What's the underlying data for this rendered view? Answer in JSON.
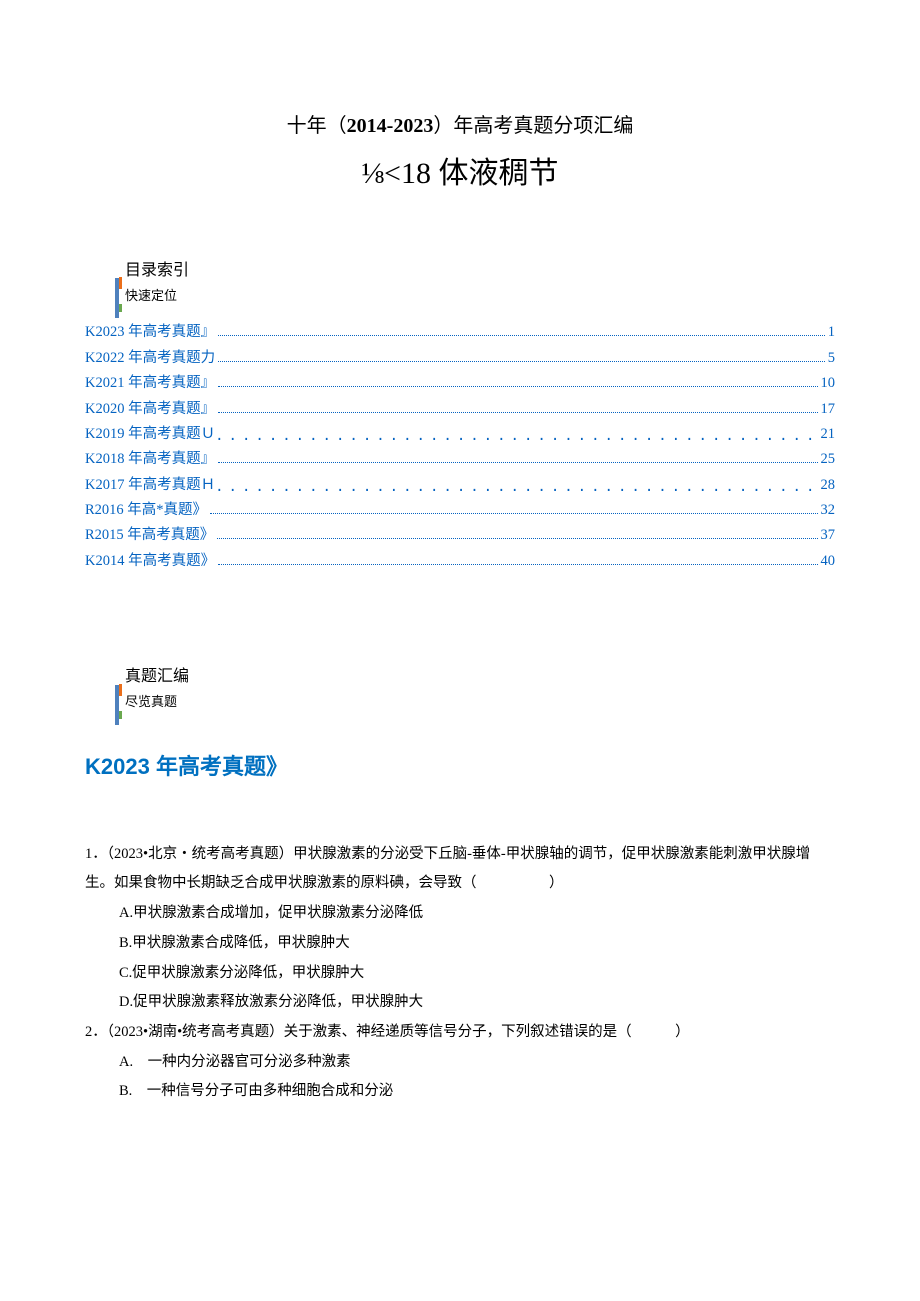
{
  "header": {
    "line1_pre": "十年（",
    "line1_bold": "2014-2023",
    "line1_post": "）年高考真题分项汇编",
    "line2": "⅛<18 体液稠节"
  },
  "sections": {
    "toc": {
      "main": "目录索引",
      "sub": "快速定位"
    },
    "compile": {
      "main": "真题汇编",
      "sub": "尽览真题"
    }
  },
  "toc": [
    {
      "title": "K2023 年高考真题』",
      "page": "1",
      "style": "dense"
    },
    {
      "title": "K2022 年高考真题力",
      "page": "5",
      "style": "dense"
    },
    {
      "title": "K2021 年高考真题』",
      "page": "10",
      "style": "dense"
    },
    {
      "title": "K2020 年高考真题』",
      "page": "17",
      "style": "dense"
    },
    {
      "title": "K2019 年高考真题Ｕ",
      "page": "21",
      "style": "spaced"
    },
    {
      "title": "K2018 年高考真题』",
      "page": "25",
      "style": "dense"
    },
    {
      "title": "K2017 年高考真题Ｈ",
      "page": "28",
      "style": "spaced"
    },
    {
      "title": "R2016 年高*真题》",
      "page": "32",
      "style": "dense"
    },
    {
      "title": "R2015 年高考真题》",
      "page": "37",
      "style": "dense"
    },
    {
      "title": "K2014 年高考真题》",
      "page": "40",
      "style": "dense"
    }
  ],
  "year_heading": "K2023 年高考真题》",
  "questions": [
    {
      "num": "1．",
      "stem": "（2023•北京・统考高考真题）甲状腺激素的分泌受下丘脑-垂体-甲状腺轴的调节，促甲状腺激素能刺激甲状腺增生。如果食物中长期缺乏合成甲状腺激素的原料碘，会导致（　　　　　）",
      "options": [
        "A.甲状腺激素合成增加，促甲状腺激素分泌降低",
        "B.甲状腺激素合成降低，甲状腺肿大",
        "C.促甲状腺激素分泌降低，甲状腺肿大",
        "D.促甲状腺激素释放激素分泌降低，甲状腺肿大"
      ]
    },
    {
      "num": "2．",
      "stem": "（2023•湖南•统考高考真题）关于激素、神经递质等信号分子，下列叙述错误的是（　　　）",
      "sub_options": [
        "A.　一种内分泌器官可分泌多种激素",
        "B.　一种信号分子可由多种细胞合成和分泌"
      ]
    }
  ],
  "colors": {
    "link": "#0563c1",
    "heading": "#0070c0",
    "bar": "#4f81bd",
    "accent1": "#eb6e1a",
    "accent2": "#6aa84f"
  }
}
